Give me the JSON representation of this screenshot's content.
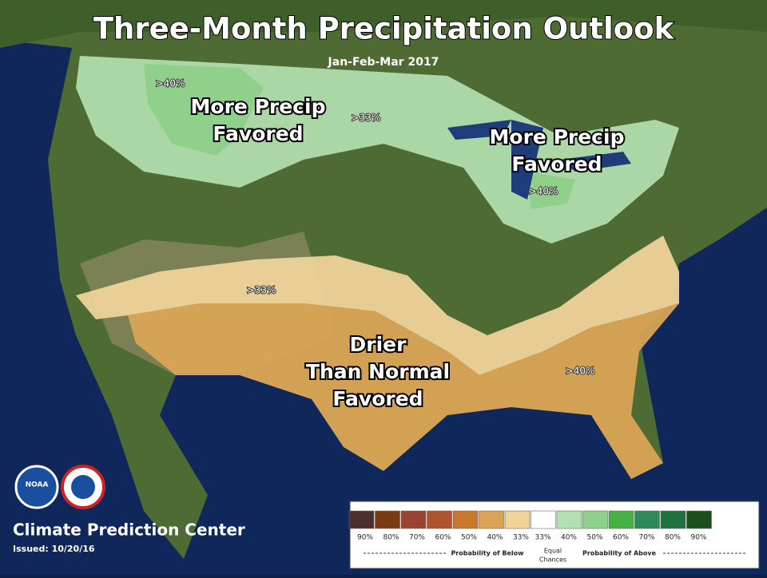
{
  "header": {
    "title": "Three-Month Precipitation Outlook",
    "subtitle": "Jan-Feb-Mar 2017"
  },
  "regions": [
    {
      "lines": [
        "More Precip",
        "Favored"
      ]
    },
    {
      "lines": [
        "More Precip",
        "Favored"
      ]
    },
    {
      "lines": [
        "Drier",
        "Than Normal",
        "Favored"
      ]
    }
  ],
  "contour_labels": [
    ">40%",
    ">33%",
    ">40%",
    ">33%",
    ">40%"
  ],
  "legend": {
    "items": [
      {
        "color": "#4b2e2e",
        "label": "90%"
      },
      {
        "color": "#7a3b12",
        "label": "80%"
      },
      {
        "color": "#994433",
        "label": "70%"
      },
      {
        "color": "#b0542e",
        "label": "60%"
      },
      {
        "color": "#c8782e",
        "label": "50%"
      },
      {
        "color": "#d9a456",
        "label": "40%"
      },
      {
        "color": "#efd39a",
        "label": "33%"
      },
      {
        "color": "#ffffff",
        "label": "33%"
      },
      {
        "color": "#b3e0b0",
        "label": "40%"
      },
      {
        "color": "#8fd18a",
        "label": "50%"
      },
      {
        "color": "#45b145",
        "label": "60%"
      },
      {
        "color": "#2f8a5a",
        "label": "70%"
      },
      {
        "color": "#207040",
        "label": "80%"
      },
      {
        "color": "#1d4f1d",
        "label": "90%"
      }
    ],
    "below": "Probability of Below",
    "equal": [
      "Equal",
      "Chances"
    ],
    "above": "Probability of Above"
  },
  "footer": {
    "org": "Climate Prediction Center",
    "issued": "Issued: 10/20/16",
    "logo1": "NOAA"
  }
}
